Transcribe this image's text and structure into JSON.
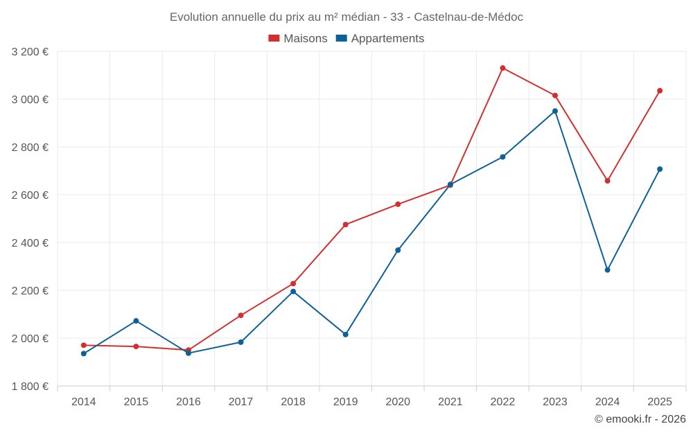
{
  "chart_data": {
    "type": "line",
    "title": "Evolution annuelle du prix au m² médian - 33 - Castelnau-de-Médoc",
    "categories": [
      "2014",
      "2015",
      "2016",
      "2017",
      "2018",
      "2019",
      "2020",
      "2021",
      "2022",
      "2023",
      "2024",
      "2025"
    ],
    "series": [
      {
        "name": "Maisons",
        "color": "#d32f2f",
        "values": [
          1970,
          1965,
          1950,
          2095,
          2228,
          2475,
          2560,
          2640,
          3130,
          3015,
          2658,
          3035
        ]
      },
      {
        "name": "Appartements",
        "color": "#0d6196",
        "values": [
          1935,
          2072,
          1937,
          1983,
          2195,
          2015,
          2368,
          2643,
          2758,
          2950,
          2285,
          2707
        ]
      }
    ],
    "ylim": [
      1800,
      3200
    ],
    "yticks": [
      1800,
      2000,
      2200,
      2400,
      2600,
      2800,
      3000,
      3200
    ],
    "ytick_labels": [
      "1 800 €",
      "2 000 €",
      "2 200 €",
      "2 400 €",
      "2 600 €",
      "2 800 €",
      "3 000 €",
      "3 200 €"
    ],
    "xlabel": "",
    "ylabel": "",
    "legend_position": "top-center",
    "grid": true
  },
  "credit": "© emooki.fr - 2026"
}
